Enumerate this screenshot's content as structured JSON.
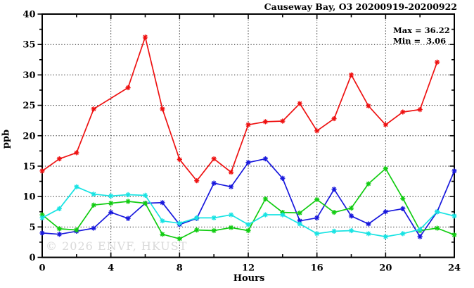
{
  "title": "Causeway Bay, O3 20200919-20200922",
  "stats": {
    "max_label": "Max = 36.22",
    "min_label": "Min =  3.06"
  },
  "watermark": "© 2026 ENVF, HKUST",
  "chart_data": {
    "type": "line",
    "title": "Causeway Bay, O3 20200919-20200922",
    "xlabel": "Hours",
    "ylabel": "ppb",
    "xlim": [
      0,
      24
    ],
    "ylim": [
      0,
      40
    ],
    "xticks_major": [
      0,
      4,
      8,
      12,
      16,
      20,
      24
    ],
    "xtick_minor_step": 2,
    "yticks_major": [
      0,
      5,
      10,
      15,
      20,
      25,
      30,
      35,
      40
    ],
    "ytick_minor_step": 2.5,
    "grid": true,
    "legend": "none",
    "marker": "asterisk",
    "annotations": {
      "max": 36.22,
      "min": 3.06
    },
    "x": [
      0,
      1,
      2,
      3,
      4,
      5,
      6,
      7,
      8,
      9,
      10,
      11,
      12,
      13,
      14,
      15,
      16,
      17,
      18,
      19,
      20,
      21,
      22,
      23,
      24
    ],
    "series": [
      {
        "name": "red",
        "color": "#ee1111",
        "values": [
          14.2,
          16.2,
          17.2,
          24.4,
          null,
          27.9,
          36.22,
          24.4,
          16.1,
          12.6,
          16.2,
          14.0,
          21.8,
          22.3,
          22.4,
          25.3,
          20.8,
          22.8,
          30.0,
          24.9,
          21.8,
          23.9,
          24.3,
          32.1,
          null
        ]
      },
      {
        "name": "blue",
        "color": "#1818dd",
        "values": [
          4.0,
          3.8,
          4.3,
          4.8,
          7.4,
          6.4,
          8.9,
          9.0,
          5.4,
          6.4,
          12.2,
          11.6,
          15.6,
          16.2,
          13.0,
          6.0,
          6.5,
          11.2,
          6.8,
          5.5,
          7.5,
          8.0,
          3.4,
          7.5,
          14.2
        ]
      },
      {
        "name": "green",
        "color": "#11cc11",
        "values": [
          7.0,
          4.7,
          4.5,
          8.6,
          8.9,
          9.2,
          8.9,
          3.8,
          3.06,
          4.5,
          4.4,
          4.9,
          4.4,
          9.6,
          7.4,
          7.3,
          9.5,
          7.4,
          8.1,
          12.1,
          14.6,
          9.7,
          4.4,
          4.8,
          3.7
        ]
      },
      {
        "name": "cyan",
        "color": "#17e3e3",
        "values": [
          6.5,
          8.0,
          11.6,
          10.4,
          10.1,
          10.3,
          10.2,
          6.0,
          5.6,
          6.5,
          6.5,
          7.0,
          5.4,
          7.0,
          7.0,
          5.5,
          3.9,
          4.3,
          4.4,
          3.9,
          3.4,
          3.9,
          4.6,
          7.5,
          6.8
        ]
      }
    ]
  }
}
